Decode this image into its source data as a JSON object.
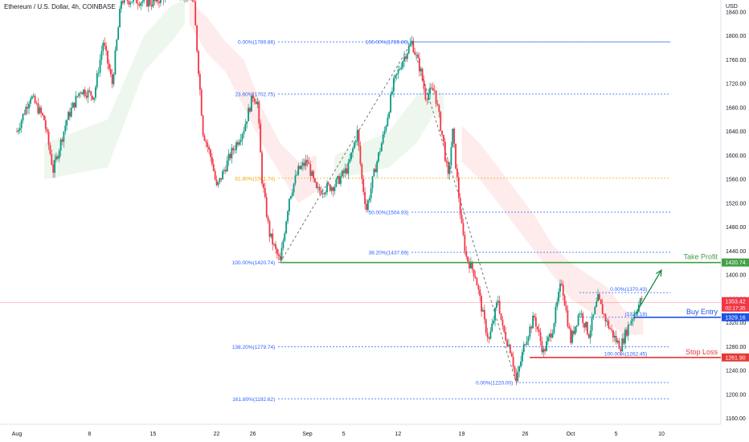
{
  "header": {
    "title": "Ethereum / U.S. Dollar, 4h, COINBASE",
    "currency": "USD"
  },
  "chart_data": {
    "type": "candlestick",
    "ylim": [
      1150,
      1860
    ],
    "y_ticks": [
      1160,
      1200,
      1240,
      1280,
      1320,
      1360,
      1400,
      1440,
      1480,
      1520,
      1560,
      1600,
      1640,
      1680,
      1720,
      1760,
      1800,
      1840
    ],
    "y_tick_labels": [
      "1160.00",
      "1200.00",
      "1240.00",
      "1280.00",
      "1320.00",
      "1360.00",
      "1400.00",
      "1440.00",
      "1480.00",
      "1520.00",
      "1560.00",
      "1600.00",
      "1640.00",
      "1680.00",
      "1720.00",
      "1760.00",
      "1800.00",
      "1840.00"
    ],
    "x_ticks": [
      "Aug",
      "8",
      "15",
      "22",
      "26",
      "Sep",
      "5",
      "12",
      "19",
      "26",
      "Oct",
      "5",
      "10"
    ],
    "x_days": [
      0,
      8,
      15,
      22,
      26,
      32,
      36,
      42,
      49,
      56,
      61,
      66,
      71
    ],
    "price_path": [
      [
        0,
        1640
      ],
      [
        1.5,
        1700
      ],
      [
        3,
        1660
      ],
      [
        4,
        1575
      ],
      [
        5.5,
        1660
      ],
      [
        7,
        1710
      ],
      [
        8.5,
        1700
      ],
      [
        9.5,
        1790
      ],
      [
        10.5,
        1720
      ],
      [
        11.5,
        1860
      ],
      [
        13,
        1860
      ],
      [
        15,
        1855
      ],
      [
        17,
        1875
      ],
      [
        19,
        1870
      ],
      [
        19.5,
        1850
      ],
      [
        20.5,
        1640
      ],
      [
        21.5,
        1590
      ],
      [
        22,
        1545
      ],
      [
        23.5,
        1600
      ],
      [
        25,
        1645
      ],
      [
        26,
        1700
      ],
      [
        26.5,
        1690
      ],
      [
        27,
        1560
      ],
      [
        27.8,
        1470
      ],
      [
        28.5,
        1440
      ],
      [
        29,
        1420.74
      ],
      [
        30,
        1530
      ],
      [
        31,
        1575
      ],
      [
        32,
        1590
      ],
      [
        33,
        1540
      ],
      [
        35,
        1550
      ],
      [
        36.5,
        1580
      ],
      [
        37.5,
        1640
      ],
      [
        38,
        1560
      ],
      [
        38.5,
        1510
      ],
      [
        39.5,
        1580
      ],
      [
        40.5,
        1640
      ],
      [
        41.5,
        1720
      ],
      [
        42.5,
        1760
      ],
      [
        43.5,
        1789.86
      ],
      [
        44.5,
        1740
      ],
      [
        45,
        1700
      ],
      [
        46,
        1710
      ],
      [
        47,
        1620
      ],
      [
        47.5,
        1560
      ],
      [
        48,
        1640
      ],
      [
        48.5,
        1560
      ],
      [
        49,
        1480
      ],
      [
        49.5,
        1430
      ],
      [
        50.5,
        1400
      ],
      [
        51.5,
        1320
      ],
      [
        52,
        1290
      ],
      [
        53,
        1360
      ],
      [
        53.5,
        1310
      ],
      [
        54.5,
        1270
      ],
      [
        55,
        1220
      ],
      [
        56,
        1290
      ],
      [
        57,
        1330
      ],
      [
        58,
        1270
      ],
      [
        59,
        1310
      ],
      [
        60,
        1390
      ],
      [
        61,
        1290
      ],
      [
        62,
        1340
      ],
      [
        63,
        1300
      ],
      [
        64,
        1360
      ],
      [
        65,
        1320
      ],
      [
        66,
        1290
      ],
      [
        66.5,
        1280
      ],
      [
        67.5,
        1320
      ],
      [
        68.5,
        1350
      ],
      [
        69,
        1365
      ]
    ],
    "cloud_bands": [
      {
        "color": "green",
        "points": [
          [
            3,
            1560,
            1620
          ],
          [
            10,
            1580,
            1660
          ],
          [
            14,
            1740,
            1800
          ],
          [
            17,
            1790,
            1850
          ],
          [
            18.5,
            1820,
            1860
          ]
        ]
      },
      {
        "color": "red",
        "points": [
          [
            19,
            1820,
            1860
          ],
          [
            21,
            1770,
            1830
          ],
          [
            23,
            1740,
            1790
          ],
          [
            25,
            1680,
            1760
          ],
          [
            27,
            1620,
            1680
          ],
          [
            29,
            1570,
            1620
          ],
          [
            31,
            1520,
            1590
          ],
          [
            33,
            1540,
            1600
          ]
        ]
      },
      {
        "color": "green",
        "points": [
          [
            35,
            1560,
            1600
          ],
          [
            38,
            1570,
            1620
          ],
          [
            41,
            1580,
            1640
          ],
          [
            44,
            1620,
            1700
          ],
          [
            46,
            1670,
            1720
          ],
          [
            47,
            1650,
            1700
          ]
        ]
      },
      {
        "color": "red",
        "points": [
          [
            49,
            1590,
            1650
          ],
          [
            51,
            1560,
            1620
          ],
          [
            53,
            1520,
            1580
          ],
          [
            55,
            1480,
            1540
          ],
          [
            57,
            1440,
            1500
          ],
          [
            59,
            1400,
            1450
          ],
          [
            61,
            1360,
            1420
          ],
          [
            63,
            1340,
            1400
          ],
          [
            65,
            1320,
            1380
          ],
          [
            67,
            1300,
            1340
          ],
          [
            69,
            1300,
            1330
          ]
        ]
      }
    ],
    "fib_upper": {
      "x_start": 28.8,
      "x_end": 72,
      "levels": [
        {
          "label": "0.00%(1789.86)",
          "value": 1789.86,
          "color": "#2962ff"
        },
        {
          "label": "23.60%(1702.75)",
          "value": 1702.75,
          "color": "#2962ff"
        },
        {
          "label": "61.80%(1561.74)",
          "value": 1561.74,
          "color": "#f2a900"
        },
        {
          "label": "100.00%(1420.74)",
          "value": 1420.74,
          "color": "#2962ff"
        },
        {
          "label": "138.20%(1279.74)",
          "value": 1279.74,
          "color": "#2962ff"
        },
        {
          "label": "161.80%(1192.62)",
          "value": 1192.62,
          "color": "#2962ff"
        }
      ]
    },
    "fib_lower": {
      "x_start": 43.5,
      "x_end": 72,
      "levels": [
        {
          "label": "100.00%(1789.86)",
          "value": 1789.86
        },
        {
          "label": "50.00%(1504.93)",
          "value": 1504.93
        },
        {
          "label": "38.20%(1437.69)",
          "value": 1437.69
        },
        {
          "label": "0.00%(1220.00)",
          "value": 1220.0
        }
      ]
    },
    "fib_right": {
      "x_start": 62,
      "x_end": 72,
      "levels": [
        {
          "label": "0.00%(1370.43)",
          "value": 1370.43
        },
        {
          "label": "(1329.18)",
          "value": 1329.18
        },
        {
          "label": "100.00%(1262.45)",
          "value": 1262.45
        }
      ]
    },
    "trend_lines": [
      {
        "from": [
          29,
          1420.74
        ],
        "to": [
          43.5,
          1789.86
        ]
      },
      {
        "from": [
          43.5,
          1789.86
        ],
        "to": [
          55,
          1220.0
        ]
      }
    ],
    "levels": [
      {
        "name": "Take Profit",
        "value": 1420.74,
        "label": "1420.74",
        "color": "#43a047",
        "x_start": 29
      },
      {
        "name": "Buy Entry",
        "value": 1329.16,
        "label": "1329.16",
        "color": "#1e53e5",
        "x_start": 68
      },
      {
        "name": "Stop Loss",
        "value": 1261.9,
        "label": "1261.90",
        "color": "#e53935",
        "x_start": 56.5
      }
    ],
    "current_price": {
      "value": 1353.42,
      "label": "1353.42",
      "countdown": "02:17:35",
      "color": "#f23645"
    },
    "arrow": {
      "from": [
        68.2,
        1336
      ],
      "to": [
        71,
        1408
      ]
    }
  }
}
